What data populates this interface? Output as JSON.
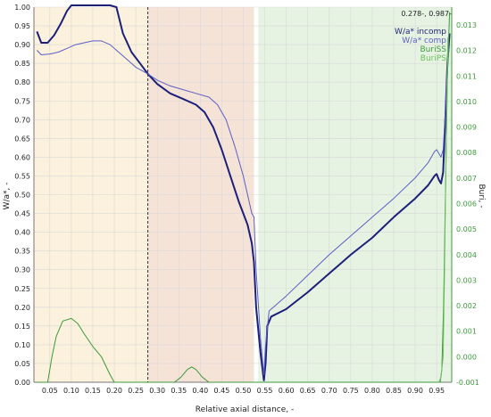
{
  "chart_data": {
    "type": "line",
    "xlabel": "Relative axial distance, -",
    "ylabel_left": "W/a*, -",
    "ylabel_right": "Buri, -",
    "xlim": [
      0.013,
      0.985
    ],
    "ylim_left": [
      0.0,
      1.0
    ],
    "ylim_right": [
      -0.001,
      0.0137
    ],
    "x_ticks": [
      "0.05",
      "0.10",
      "0.15",
      "0.20",
      "0.25",
      "0.30",
      "0.35",
      "0.40",
      "0.45",
      "0.50",
      "0.55",
      "0.60",
      "0.65",
      "0.70",
      "0.75",
      "0.80",
      "0.85",
      "0.90",
      "0.95"
    ],
    "y_left_ticks": [
      "0.00",
      "0.05",
      "0.10",
      "0.15",
      "0.20",
      "0.25",
      "0.30",
      "0.35",
      "0.40",
      "0.45",
      "0.50",
      "0.55",
      "0.60",
      "0.65",
      "0.70",
      "0.75",
      "0.80",
      "0.85",
      "0.90",
      "0.95",
      "1.00"
    ],
    "y_right_ticks": [
      "-0.001",
      "0.000",
      "0.001",
      "0.002",
      "0.003",
      "0.004",
      "0.005",
      "0.006",
      "0.007",
      "0.008",
      "0.009",
      "0.010",
      "0.011",
      "0.012",
      "0.013"
    ],
    "cursor_readout": "0.278-, 0.987-",
    "cursor_x": 0.278,
    "regions": [
      {
        "x0": 0.013,
        "x1": 0.278,
        "color": "#fbf1dc"
      },
      {
        "x0": 0.278,
        "x1": 0.525,
        "color": "#f6e3d8"
      },
      {
        "x0": 0.535,
        "x1": 0.985,
        "color": "#e6f3e3"
      }
    ],
    "grid": true,
    "legend_position": "top-right",
    "series": [
      {
        "name": "W/a* incomp",
        "axis": "left",
        "color": "#1c1f7a",
        "width": 2,
        "points": [
          [
            0.02,
            0.935
          ],
          [
            0.03,
            0.905
          ],
          [
            0.045,
            0.905
          ],
          [
            0.06,
            0.925
          ],
          [
            0.075,
            0.955
          ],
          [
            0.09,
            0.99
          ],
          [
            0.1,
            1.02
          ],
          [
            0.12,
            1.03
          ],
          [
            0.15,
            1.035
          ],
          [
            0.17,
            1.03
          ],
          [
            0.19,
            1.03
          ],
          [
            0.205,
            1.0
          ],
          [
            0.22,
            0.93
          ],
          [
            0.24,
            0.88
          ],
          [
            0.26,
            0.85
          ],
          [
            0.278,
            0.822
          ],
          [
            0.3,
            0.795
          ],
          [
            0.33,
            0.77
          ],
          [
            0.36,
            0.755
          ],
          [
            0.39,
            0.74
          ],
          [
            0.41,
            0.72
          ],
          [
            0.43,
            0.68
          ],
          [
            0.45,
            0.62
          ],
          [
            0.47,
            0.55
          ],
          [
            0.49,
            0.48
          ],
          [
            0.5,
            0.45
          ],
          [
            0.51,
            0.42
          ],
          [
            0.52,
            0.37
          ],
          [
            0.525,
            0.32
          ],
          [
            0.53,
            0.2
          ],
          [
            0.54,
            0.08
          ],
          [
            0.548,
            0.005
          ],
          [
            0.552,
            0.05
          ],
          [
            0.556,
            0.15
          ],
          [
            0.565,
            0.175
          ],
          [
            0.6,
            0.195
          ],
          [
            0.65,
            0.24
          ],
          [
            0.7,
            0.29
          ],
          [
            0.75,
            0.34
          ],
          [
            0.8,
            0.385
          ],
          [
            0.85,
            0.44
          ],
          [
            0.9,
            0.49
          ],
          [
            0.93,
            0.525
          ],
          [
            0.945,
            0.55
          ],
          [
            0.95,
            0.555
          ],
          [
            0.955,
            0.54
          ],
          [
            0.96,
            0.53
          ],
          [
            0.965,
            0.56
          ],
          [
            0.97,
            0.7
          ],
          [
            0.975,
            0.85
          ],
          [
            0.98,
            0.93
          ]
        ]
      },
      {
        "name": "W/a* comp",
        "axis": "left",
        "color": "#5a5fc4",
        "width": 1,
        "points": [
          [
            0.02,
            0.885
          ],
          [
            0.03,
            0.873
          ],
          [
            0.05,
            0.875
          ],
          [
            0.07,
            0.88
          ],
          [
            0.09,
            0.89
          ],
          [
            0.11,
            0.9
          ],
          [
            0.13,
            0.905
          ],
          [
            0.15,
            0.91
          ],
          [
            0.17,
            0.91
          ],
          [
            0.19,
            0.9
          ],
          [
            0.21,
            0.88
          ],
          [
            0.23,
            0.86
          ],
          [
            0.25,
            0.84
          ],
          [
            0.278,
            0.822
          ],
          [
            0.3,
            0.805
          ],
          [
            0.33,
            0.79
          ],
          [
            0.36,
            0.78
          ],
          [
            0.39,
            0.77
          ],
          [
            0.42,
            0.76
          ],
          [
            0.44,
            0.74
          ],
          [
            0.46,
            0.7
          ],
          [
            0.48,
            0.63
          ],
          [
            0.5,
            0.55
          ],
          [
            0.51,
            0.5
          ],
          [
            0.52,
            0.45
          ],
          [
            0.525,
            0.44
          ],
          [
            0.53,
            0.3
          ],
          [
            0.54,
            0.12
          ],
          [
            0.548,
            0.02
          ],
          [
            0.552,
            0.1
          ],
          [
            0.56,
            0.19
          ],
          [
            0.6,
            0.23
          ],
          [
            0.65,
            0.285
          ],
          [
            0.7,
            0.34
          ],
          [
            0.75,
            0.39
          ],
          [
            0.8,
            0.44
          ],
          [
            0.85,
            0.49
          ],
          [
            0.9,
            0.545
          ],
          [
            0.93,
            0.585
          ],
          [
            0.945,
            0.615
          ],
          [
            0.95,
            0.62
          ],
          [
            0.955,
            0.61
          ],
          [
            0.96,
            0.6
          ],
          [
            0.965,
            0.62
          ],
          [
            0.97,
            0.72
          ],
          [
            0.975,
            0.85
          ],
          [
            0.98,
            0.9
          ]
        ]
      },
      {
        "name": "BuriSS",
        "axis": "right",
        "color": "#3c9a3a",
        "width": 1,
        "points": [
          [
            0.02,
            -0.001
          ],
          [
            0.045,
            -0.001
          ],
          [
            0.055,
            0.0
          ],
          [
            0.065,
            0.0008
          ],
          [
            0.08,
            0.0014
          ],
          [
            0.1,
            0.0015
          ],
          [
            0.115,
            0.0013
          ],
          [
            0.13,
            0.0009
          ],
          [
            0.15,
            0.0004
          ],
          [
            0.17,
            0.0
          ],
          [
            0.19,
            -0.0007
          ],
          [
            0.2,
            -0.001
          ],
          [
            0.34,
            -0.001
          ],
          [
            0.355,
            -0.0008
          ],
          [
            0.37,
            -0.0005
          ],
          [
            0.38,
            -0.0004
          ],
          [
            0.39,
            -0.0005
          ],
          [
            0.405,
            -0.0008
          ],
          [
            0.42,
            -0.001
          ],
          [
            0.958,
            -0.001
          ],
          [
            0.962,
            -0.0005
          ],
          [
            0.966,
            0.002
          ],
          [
            0.97,
            0.006
          ],
          [
            0.975,
            0.011
          ],
          [
            0.98,
            0.0135
          ]
        ]
      },
      {
        "name": "BuriPS",
        "axis": "right",
        "color": "#6cc05a",
        "width": 1,
        "points": [
          [
            0.955,
            -0.001
          ],
          [
            0.96,
            -0.0008
          ],
          [
            0.965,
            0.0
          ],
          [
            0.968,
            0.003
          ],
          [
            0.972,
            0.008
          ],
          [
            0.976,
            0.0125
          ]
        ]
      }
    ]
  }
}
